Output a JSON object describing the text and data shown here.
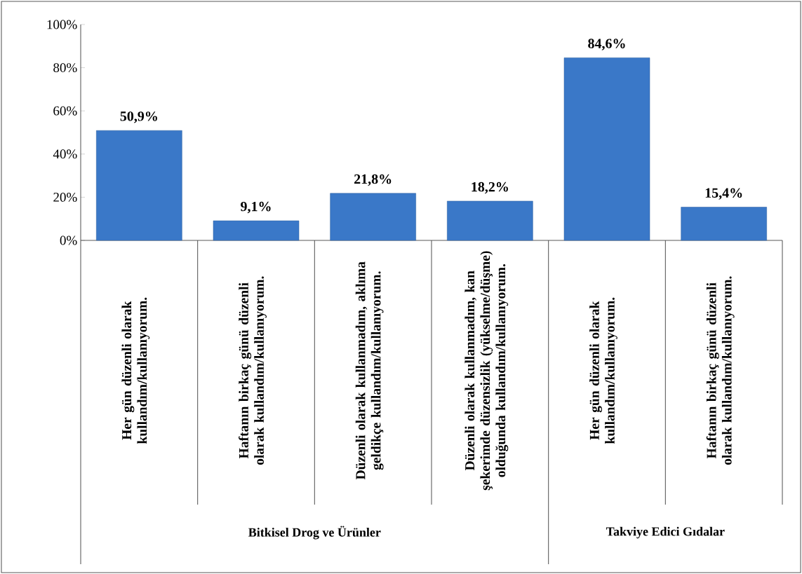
{
  "chart_data": {
    "type": "bar",
    "categories": [
      "Her gün düzenli olarak kullandım/kullanıyorum.",
      "Haftanın birkaç günü düzenli olarak kullandım/kullanıyorum.",
      "Düzenli olarak kullanmadım, aklıma geldikçe kullandım/kullanıyorum.",
      "Düzenli olarak kullanmadım, kan şekerimde düzensizlik (yükselme/düşme) olduğunda kullandım/kullanıyorum.",
      "Her gün düzenli olarak kullandım/kullanıyorum.",
      "Haftanın birkaç günü düzenli olarak kullandım/kullanıyorum."
    ],
    "values": [
      50.9,
      9.1,
      21.8,
      18.2,
      84.6,
      15.4
    ],
    "value_labels": [
      "50,9%",
      "9,1%",
      "21,8%",
      "18,2%",
      "84,6%",
      "15,4%"
    ],
    "color": "#3a78c8",
    "ylim": [
      0,
      100
    ],
    "yticks": [
      {
        "value": 0,
        "label": "0%"
      },
      {
        "value": 20,
        "label": "20%"
      },
      {
        "value": 40,
        "label": "40%"
      },
      {
        "value": 60,
        "label": "60%"
      },
      {
        "value": 80,
        "label": "80%"
      },
      {
        "value": 100,
        "label": "100%"
      }
    ],
    "annotations": [
      "Bitkisel Drog ve Ürünler",
      "Takviye Edici Gıdalar"
    ],
    "grid": false
  }
}
